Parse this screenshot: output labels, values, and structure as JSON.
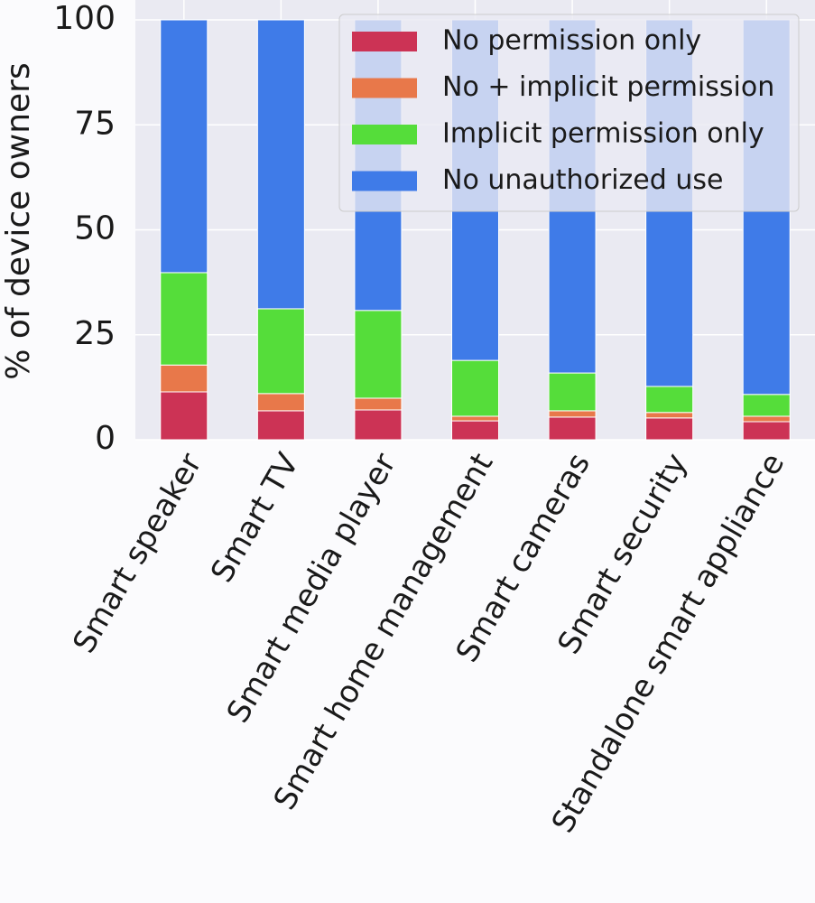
{
  "chart_data": {
    "type": "stacked_bar",
    "y_label": "% of device owners",
    "categories": [
      "Smart speaker",
      "Smart TV",
      "Smart media player",
      "Smart home management",
      "Smart cameras",
      "Smart security",
      "Standalone smart appliance"
    ],
    "series": [
      {
        "name": "No permission only",
        "color": "#cc3355",
        "values": [
          11.4,
          6.9,
          7.1,
          4.5,
          5.4,
          5.2,
          4.3
        ]
      },
      {
        "name": "No + implicit permission",
        "color": "#e8784a",
        "values": [
          6.4,
          4.1,
          2.8,
          1.1,
          1.5,
          1.3,
          1.3
        ]
      },
      {
        "name": "Implicit permission only",
        "color": "#55dd3a",
        "values": [
          22.0,
          20.2,
          20.9,
          13.3,
          9.0,
          6.2,
          5.2
        ]
      },
      {
        "name": "No unauthorized use",
        "color": "#3f7be8",
        "values": [
          60.2,
          68.8,
          69.2,
          81.1,
          84.1,
          87.3,
          89.2
        ]
      }
    ],
    "ylim": [
      0,
      105
    ],
    "yticks": [
      0,
      25,
      50,
      75,
      100
    ],
    "grid": true,
    "legend": "upper right"
  }
}
